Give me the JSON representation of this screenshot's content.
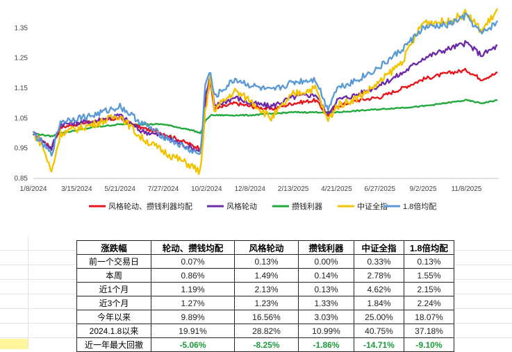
{
  "chart_data": {
    "type": "line",
    "x_tick_labels": [
      "1/8/2024",
      "3/15/2024",
      "5/21/2024",
      "7/27/2024",
      "10/2/2024",
      "12/8/2024",
      "2/13/2025",
      "4/21/2025",
      "6/27/2025",
      "9/2/2025",
      "11/8/2025"
    ],
    "y_tick_labels": [
      "0.85",
      "0.95",
      "1.05",
      "1.15",
      "1.25",
      "1.35"
    ],
    "ylim": [
      0.85,
      1.42
    ],
    "grid": false,
    "legend_position": "bottom",
    "series": [
      {
        "name": "风格轮动、攒钱利器均配",
        "color": "#e8141c",
        "points": [
          [
            "2024-01-08",
            1.0
          ],
          [
            "2024-02-05",
            0.95
          ],
          [
            "2024-02-19",
            1.02
          ],
          [
            "2024-04-10",
            1.04
          ],
          [
            "2024-05-21",
            1.05
          ],
          [
            "2024-06-20",
            1.02
          ],
          [
            "2024-07-27",
            1.0
          ],
          [
            "2024-09-10",
            0.96
          ],
          [
            "2024-09-23",
            0.95
          ],
          [
            "2024-09-30",
            1.1
          ],
          [
            "2024-10-08",
            1.17
          ],
          [
            "2024-10-14",
            1.08
          ],
          [
            "2024-11-15",
            1.1
          ],
          [
            "2024-12-08",
            1.09
          ],
          [
            "2025-01-10",
            1.08
          ],
          [
            "2025-02-13",
            1.1
          ],
          [
            "2025-03-20",
            1.11
          ],
          [
            "2025-04-07",
            1.06
          ],
          [
            "2025-04-21",
            1.09
          ],
          [
            "2025-05-25",
            1.11
          ],
          [
            "2025-06-27",
            1.12
          ],
          [
            "2025-08-01",
            1.15
          ],
          [
            "2025-09-02",
            1.18
          ],
          [
            "2025-10-10",
            1.2
          ],
          [
            "2025-11-08",
            1.21
          ],
          [
            "2025-12-01",
            1.18
          ],
          [
            "2025-12-26",
            1.2
          ]
        ]
      },
      {
        "name": "风格轮动",
        "color": "#6d2aa8",
        "points": [
          [
            "2024-01-08",
            1.0
          ],
          [
            "2024-02-05",
            0.95
          ],
          [
            "2024-02-19",
            1.03
          ],
          [
            "2024-04-10",
            1.04
          ],
          [
            "2024-05-21",
            1.06
          ],
          [
            "2024-06-20",
            1.01
          ],
          [
            "2024-07-27",
            0.99
          ],
          [
            "2024-09-10",
            0.95
          ],
          [
            "2024-09-23",
            0.94
          ],
          [
            "2024-09-30",
            1.12
          ],
          [
            "2024-10-08",
            1.19
          ],
          [
            "2024-10-14",
            1.09
          ],
          [
            "2024-11-15",
            1.12
          ],
          [
            "2024-12-08",
            1.1
          ],
          [
            "2025-01-10",
            1.09
          ],
          [
            "2025-02-13",
            1.12
          ],
          [
            "2025-03-20",
            1.13
          ],
          [
            "2025-04-07",
            1.06
          ],
          [
            "2025-04-21",
            1.11
          ],
          [
            "2025-05-25",
            1.13
          ],
          [
            "2025-06-27",
            1.16
          ],
          [
            "2025-08-01",
            1.2
          ],
          [
            "2025-09-02",
            1.25
          ],
          [
            "2025-10-10",
            1.28
          ],
          [
            "2025-11-08",
            1.3
          ],
          [
            "2025-12-01",
            1.26
          ],
          [
            "2025-12-26",
            1.29
          ]
        ]
      },
      {
        "name": "攒钱利器",
        "color": "#22a83c",
        "points": [
          [
            "2024-01-08",
            1.0
          ],
          [
            "2024-02-05",
            0.99
          ],
          [
            "2024-02-19",
            1.0
          ],
          [
            "2024-04-10",
            1.02
          ],
          [
            "2024-05-21",
            1.03
          ],
          [
            "2024-07-27",
            1.03
          ],
          [
            "2024-09-10",
            1.01
          ],
          [
            "2024-09-23",
            1.0
          ],
          [
            "2024-09-30",
            1.04
          ],
          [
            "2024-10-08",
            1.06
          ],
          [
            "2024-12-08",
            1.06
          ],
          [
            "2025-02-13",
            1.07
          ],
          [
            "2025-04-07",
            1.07
          ],
          [
            "2025-04-21",
            1.07
          ],
          [
            "2025-06-27",
            1.08
          ],
          [
            "2025-09-02",
            1.09
          ],
          [
            "2025-11-08",
            1.11
          ],
          [
            "2025-12-01",
            1.1
          ],
          [
            "2025-12-26",
            1.11
          ]
        ]
      },
      {
        "name": "中证全指",
        "color": "#f3c300",
        "points": [
          [
            "2024-01-08",
            1.0
          ],
          [
            "2024-01-22",
            0.96
          ],
          [
            "2024-02-05",
            0.87
          ],
          [
            "2024-02-19",
            1.0
          ],
          [
            "2024-04-10",
            1.03
          ],
          [
            "2024-05-21",
            1.06
          ],
          [
            "2024-06-20",
            0.99
          ],
          [
            "2024-07-27",
            0.94
          ],
          [
            "2024-09-10",
            0.89
          ],
          [
            "2024-09-23",
            0.87
          ],
          [
            "2024-09-30",
            1.07
          ],
          [
            "2024-10-08",
            1.19
          ],
          [
            "2024-10-14",
            1.08
          ],
          [
            "2024-11-15",
            1.14
          ],
          [
            "2024-12-08",
            1.11
          ],
          [
            "2025-01-10",
            1.05
          ],
          [
            "2025-02-13",
            1.13
          ],
          [
            "2025-03-20",
            1.15
          ],
          [
            "2025-04-07",
            1.04
          ],
          [
            "2025-04-21",
            1.09
          ],
          [
            "2025-05-25",
            1.12
          ],
          [
            "2025-06-27",
            1.17
          ],
          [
            "2025-08-01",
            1.24
          ],
          [
            "2025-09-02",
            1.37
          ],
          [
            "2025-10-10",
            1.37
          ],
          [
            "2025-11-08",
            1.4
          ],
          [
            "2025-12-01",
            1.34
          ],
          [
            "2025-12-26",
            1.41
          ]
        ]
      },
      {
        "name": "1.8倍均配",
        "color": "#5b9bd5",
        "points": [
          [
            "2024-01-08",
            1.0
          ],
          [
            "2024-02-05",
            0.93
          ],
          [
            "2024-02-19",
            1.04
          ],
          [
            "2024-04-10",
            1.06
          ],
          [
            "2024-05-21",
            1.09
          ],
          [
            "2024-06-20",
            1.04
          ],
          [
            "2024-07-27",
            0.99
          ],
          [
            "2024-09-10",
            0.94
          ],
          [
            "2024-09-23",
            0.93
          ],
          [
            "2024-09-30",
            1.17
          ],
          [
            "2024-10-08",
            1.2
          ],
          [
            "2024-10-14",
            1.12
          ],
          [
            "2024-11-15",
            1.18
          ],
          [
            "2024-12-08",
            1.16
          ],
          [
            "2025-01-10",
            1.14
          ],
          [
            "2025-02-13",
            1.17
          ],
          [
            "2025-03-20",
            1.18
          ],
          [
            "2025-04-07",
            1.08
          ],
          [
            "2025-04-21",
            1.15
          ],
          [
            "2025-05-25",
            1.18
          ],
          [
            "2025-06-27",
            1.22
          ],
          [
            "2025-08-01",
            1.28
          ],
          [
            "2025-09-02",
            1.35
          ],
          [
            "2025-10-10",
            1.36
          ],
          [
            "2025-11-08",
            1.39
          ],
          [
            "2025-12-01",
            1.33
          ],
          [
            "2025-12-26",
            1.37
          ]
        ]
      }
    ]
  },
  "table": {
    "headers": [
      "涨跌幅",
      "轮动、攒钱均配",
      "风格轮动",
      "攒钱利器",
      "中证全指",
      "1.8倍均配"
    ],
    "rows": [
      {
        "label": "前一个交易日",
        "values": [
          "0.07%",
          "0.13%",
          "0.00%",
          "0.33%",
          "0.13%"
        ]
      },
      {
        "label": "本周",
        "values": [
          "0.86%",
          "1.49%",
          "0.14%",
          "2.78%",
          "1.55%"
        ]
      },
      {
        "label": "近1个月",
        "values": [
          "1.19%",
          "2.13%",
          "0.13%",
          "4.62%",
          "2.15%"
        ]
      },
      {
        "label": "近3个月",
        "values": [
          "1.27%",
          "1.23%",
          "1.33%",
          "1.84%",
          "2.24%"
        ]
      },
      {
        "label": "今年以来",
        "values": [
          "9.89%",
          "16.56%",
          "3.03%",
          "25.00%",
          "18.07%"
        ]
      },
      {
        "label": "2024.1.8以来",
        "values": [
          "19.91%",
          "28.82%",
          "10.99%",
          "40.75%",
          "37.18%"
        ]
      },
      {
        "label": "近一年最大回撤",
        "values": [
          "-5.06%",
          "-8.25%",
          "-1.86%",
          "-14.71%",
          "-9.10%"
        ]
      }
    ]
  }
}
